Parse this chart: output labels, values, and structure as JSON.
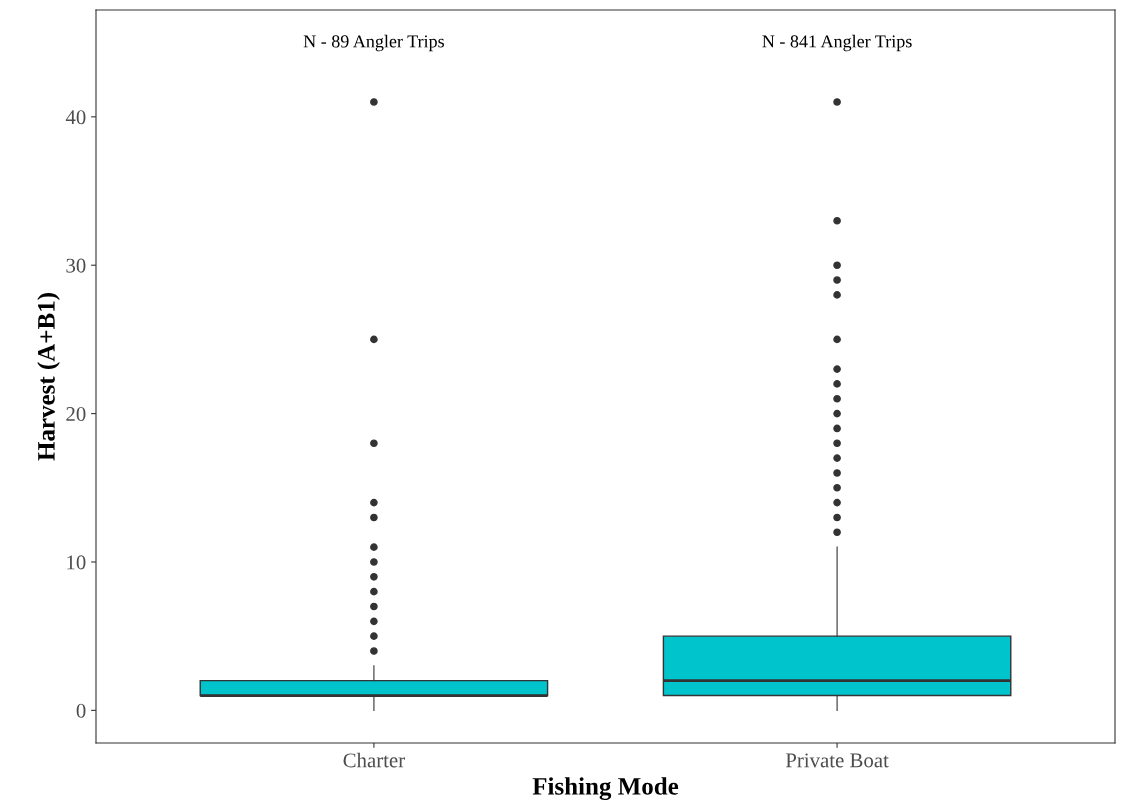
{
  "chart_data": {
    "type": "box",
    "xlabel": "Fishing Mode",
    "ylabel": "Harvest (A+B1)",
    "categories": [
      "Charter",
      "Private Boat"
    ],
    "color": "#00c4cc",
    "boxes": [
      {
        "low": 0,
        "q1": 1,
        "median": 1,
        "q3": 2,
        "high": 3,
        "outliers": [
          4,
          5,
          6,
          7,
          8,
          9,
          10,
          11,
          13,
          14,
          18,
          25,
          41
        ]
      },
      {
        "low": 0,
        "q1": 1,
        "median": 2,
        "q3": 5,
        "high": 11,
        "outliers": [
          12,
          13,
          14,
          15,
          16,
          17,
          18,
          19,
          20,
          21,
          22,
          23,
          25,
          28,
          29,
          30,
          33,
          41
        ]
      }
    ],
    "ylim": [
      -2.2,
      47.2
    ],
    "yticks": [
      0,
      10,
      20,
      30,
      40
    ],
    "grid": false,
    "annotations": [
      "N - 89 Angler Trips",
      "N - 841 Angler Trips"
    ]
  }
}
